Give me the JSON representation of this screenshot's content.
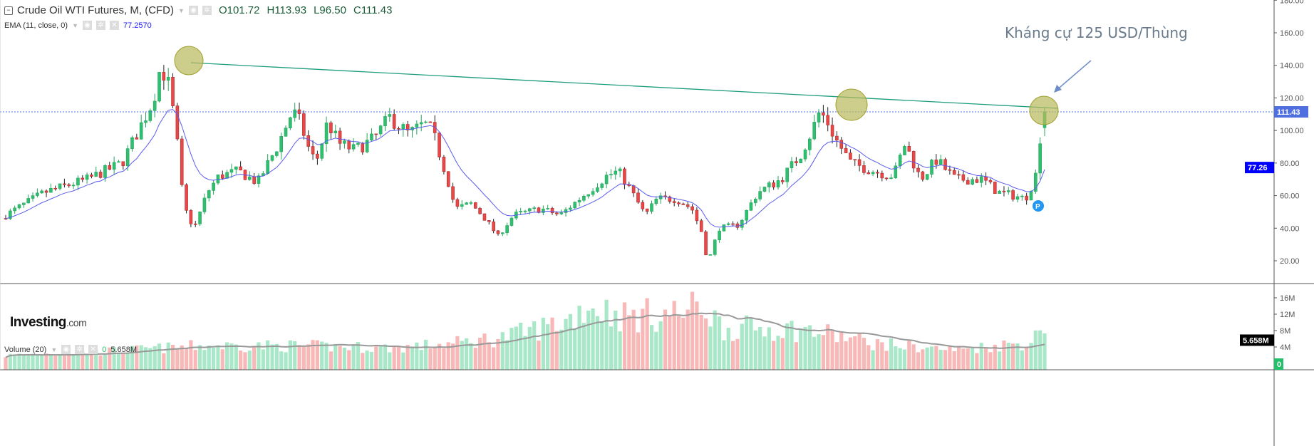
{
  "legend": {
    "title": "Crude Oil WTI Futures, M, (CFD)",
    "open": "O101.72",
    "high": "H113.93",
    "low": "L96.50",
    "close": "C111.43",
    "ema_label": "EMA (11, close, 0)",
    "ema_value": "77.2570",
    "volume_label": "Volume (20)",
    "volume_value0": "0",
    "volume_value": "5.658M"
  },
  "annotation": "Kháng cự 125 USD/Thùng",
  "logo": {
    "main": "Investing",
    "suffix": ".com"
  },
  "colors": {
    "up": "#26a65b",
    "up_fill": "#2fbf71",
    "down": "#b22b2b",
    "down_fill": "#e84848",
    "ema": "#5b5bf0",
    "trendline": "#1e9c7c",
    "circle": "#b8b95a",
    "vol_up": "#a8e8c8",
    "vol_down": "#f8b8b8",
    "vol_ma": "#999999",
    "last_price": "#4f6fe0"
  },
  "chart_data": {
    "type": "candlestick",
    "title": "Crude Oil WTI Futures, M, (CFD)",
    "interval": "monthly",
    "price_axis": {
      "ticks": [
        "180.00",
        "160.00",
        "140.00",
        "120.00",
        "100.00",
        "80.00",
        "60.00",
        "40.00",
        "20.00"
      ],
      "range": [
        8,
        180
      ]
    },
    "volume_axis": {
      "ticks": [
        "16M",
        "12M",
        "8M",
        "4M"
      ],
      "range": [
        0,
        19
      ]
    },
    "last_price": "111.43",
    "ema_last": "77.26",
    "volume_last": "5.658M",
    "volume_zero": "0",
    "candle_count": 231,
    "close_anchors": [
      [
        0,
        48
      ],
      [
        10,
        62
      ],
      [
        21,
        70
      ],
      [
        30,
        80
      ],
      [
        38,
        118
      ],
      [
        40,
        140
      ],
      [
        42,
        128
      ],
      [
        44,
        100
      ],
      [
        45,
        70
      ],
      [
        47,
        45
      ],
      [
        49,
        42
      ],
      [
        52,
        62
      ],
      [
        55,
        72
      ],
      [
        60,
        75
      ],
      [
        65,
        68
      ],
      [
        70,
        90
      ],
      [
        74,
        112
      ],
      [
        76,
        105
      ],
      [
        78,
        90
      ],
      [
        80,
        80
      ],
      [
        83,
        105
      ],
      [
        86,
        92
      ],
      [
        90,
        88
      ],
      [
        95,
        95
      ],
      [
        99,
        108
      ],
      [
        104,
        98
      ],
      [
        108,
        104
      ],
      [
        110,
        100
      ],
      [
        112,
        85
      ],
      [
        114,
        70
      ],
      [
        116,
        52
      ],
      [
        120,
        55
      ],
      [
        123,
        48
      ],
      [
        127,
        35
      ],
      [
        131,
        48
      ],
      [
        138,
        52
      ],
      [
        143,
        48
      ],
      [
        150,
        62
      ],
      [
        155,
        72
      ],
      [
        158,
        75
      ],
      [
        160,
        68
      ],
      [
        162,
        60
      ],
      [
        165,
        48
      ],
      [
        168,
        58
      ],
      [
        173,
        58
      ],
      [
        177,
        52
      ],
      [
        180,
        35
      ],
      [
        181,
        18
      ],
      [
        182,
        25
      ],
      [
        184,
        40
      ],
      [
        189,
        42
      ],
      [
        194,
        62
      ],
      [
        200,
        70
      ],
      [
        205,
        85
      ],
      [
        208,
        100
      ],
      [
        210,
        112
      ],
      [
        212,
        105
      ],
      [
        214,
        95
      ],
      [
        218,
        80
      ],
      [
        224,
        75
      ],
      [
        229,
        72
      ],
      [
        232,
        92
      ],
      [
        236,
        70
      ],
      [
        240,
        82
      ],
      [
        245,
        70
      ],
      [
        252,
        70
      ],
      [
        256,
        62
      ],
      [
        260,
        60
      ],
      [
        263,
        58
      ],
      [
        265,
        68
      ],
      [
        266,
        75
      ],
      [
        267,
        100
      ],
      [
        268,
        111.43
      ]
    ],
    "volume_anchors": [
      [
        0,
        2
      ],
      [
        25,
        3
      ],
      [
        50,
        4.5
      ],
      [
        75,
        4.5
      ],
      [
        100,
        4
      ],
      [
        115,
        5
      ],
      [
        130,
        7
      ],
      [
        145,
        11
      ],
      [
        150,
        15
      ],
      [
        160,
        12
      ],
      [
        175,
        13
      ],
      [
        180,
        15
      ],
      [
        185,
        9
      ],
      [
        200,
        9
      ],
      [
        210,
        8
      ],
      [
        225,
        5
      ],
      [
        245,
        3.5
      ],
      [
        265,
        5.5
      ],
      [
        268,
        11
      ]
    ],
    "series": [
      {
        "name": "Price",
        "kind": "candlestick"
      },
      {
        "name": "EMA (11, close, 0)",
        "kind": "line",
        "last": 77.257
      },
      {
        "name": "Volume (20)",
        "kind": "bar",
        "last": "5.658M"
      }
    ],
    "annotations": [
      {
        "type": "trendline",
        "from_price": 147,
        "to_price": 124,
        "label": "resistance"
      },
      {
        "type": "text",
        "text": "Kháng cự 125 USD/Thùng"
      }
    ]
  }
}
